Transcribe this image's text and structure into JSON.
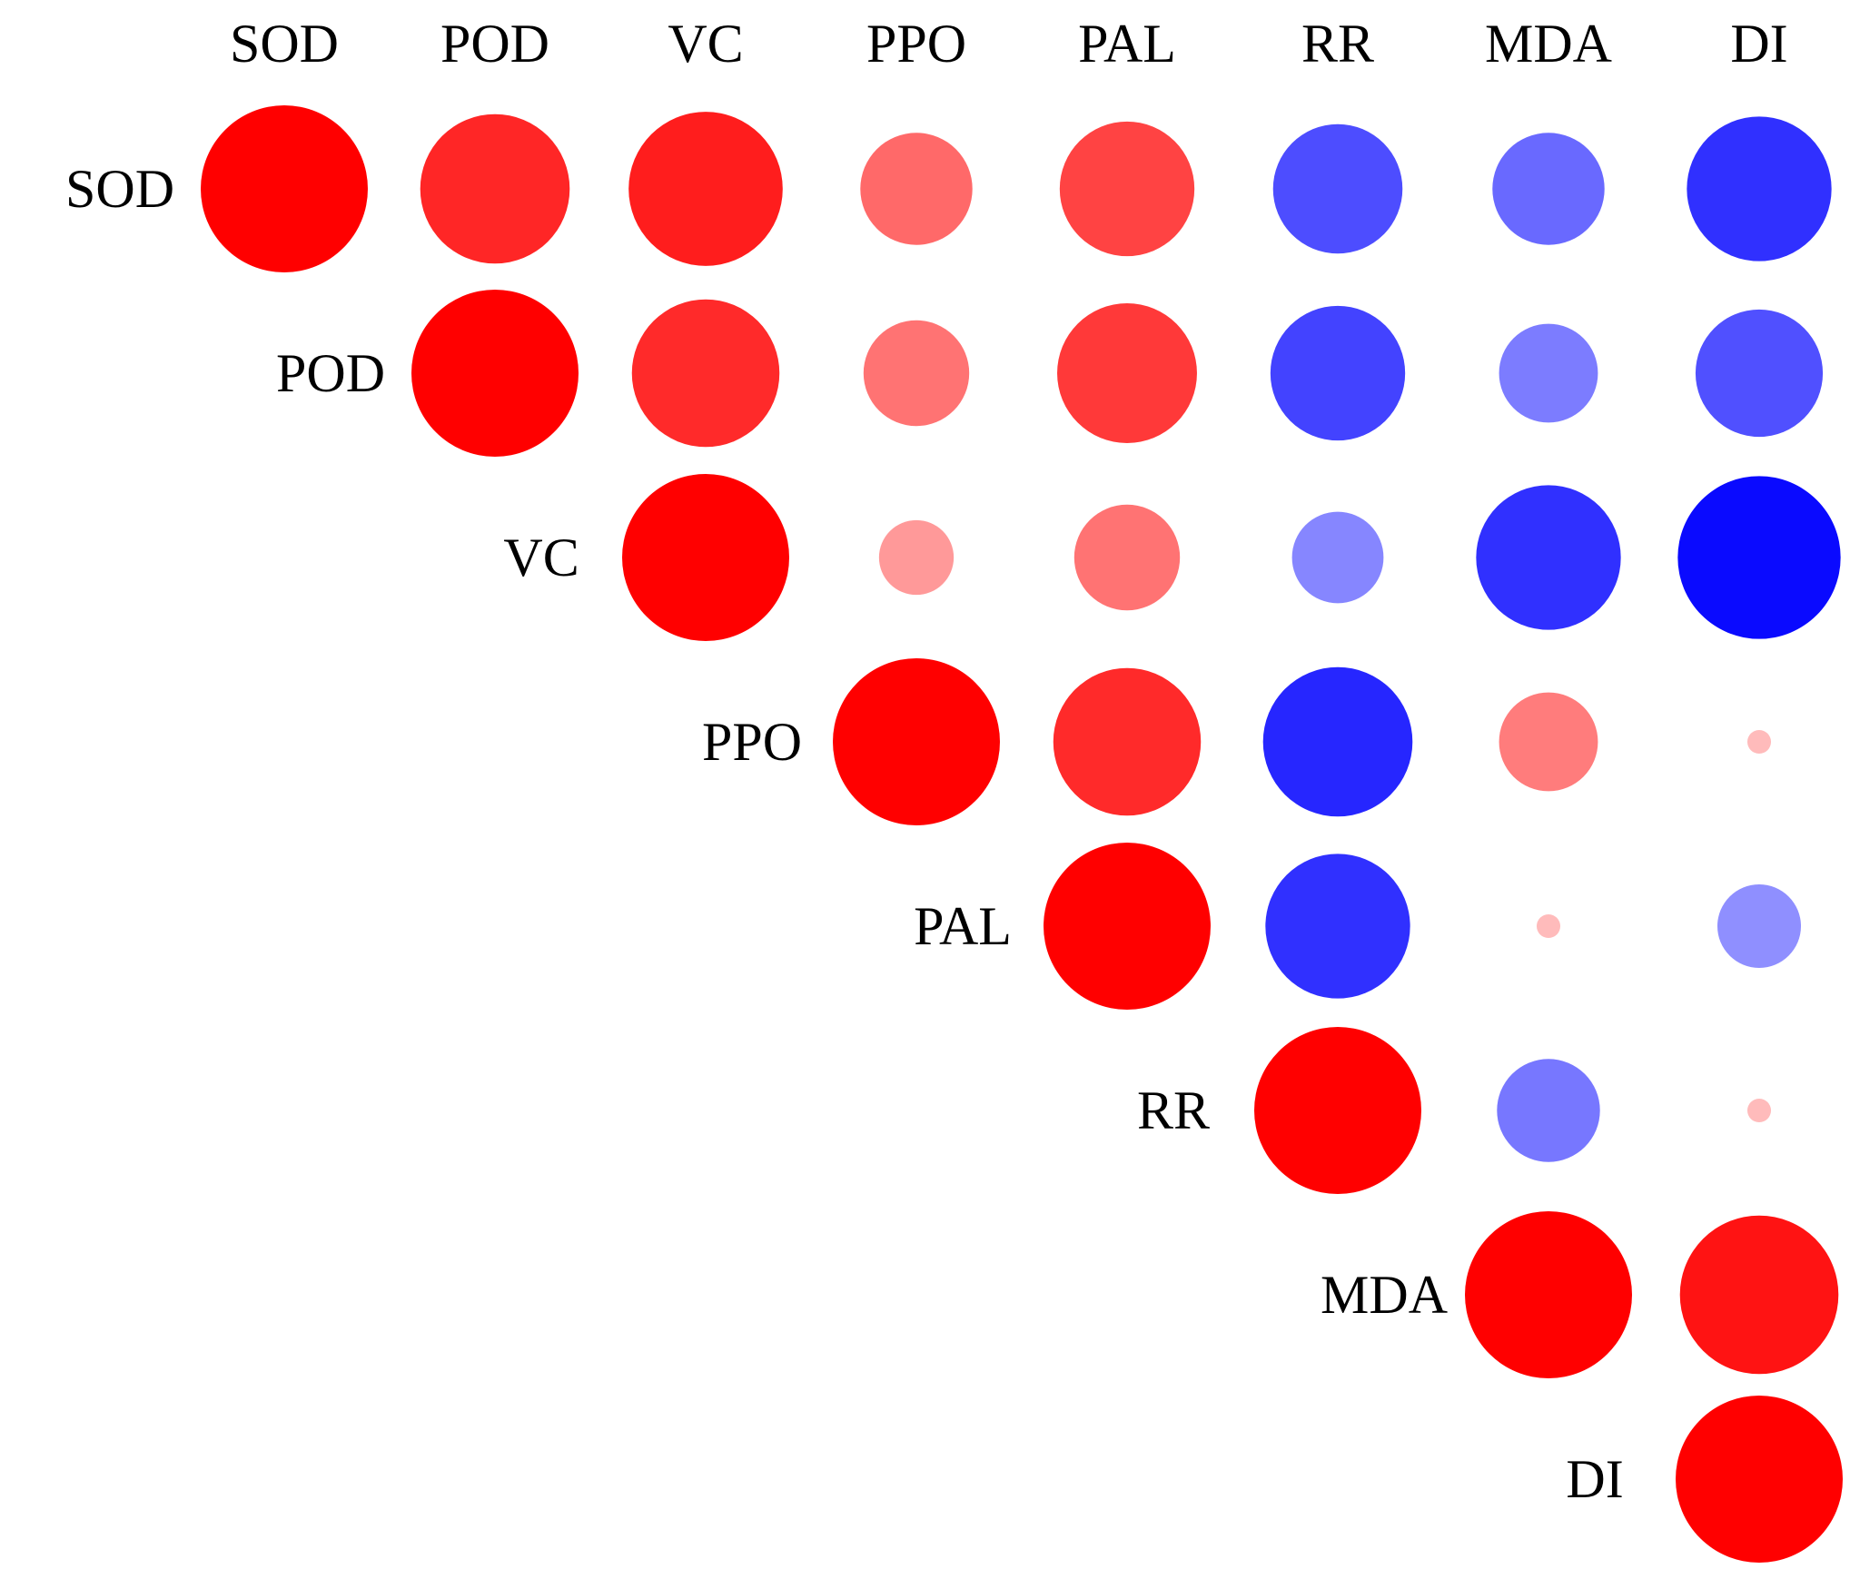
{
  "chart_data": {
    "type": "heatmap",
    "style": "correlation circle matrix, upper triangle",
    "title": "",
    "xlabel": "",
    "ylabel": "",
    "variables": [
      "SOD",
      "POD",
      "VC",
      "PPO",
      "PAL",
      "RR",
      "MDA",
      "DI"
    ],
    "value_range": [
      -1,
      1
    ],
    "encoding": "circle area and color intensity proportional to |r|; red = positive, blue = negative",
    "colors": {
      "positive": "#ff0000",
      "negative": "#0000ff",
      "background": "#ffffff",
      "label": "#000000"
    },
    "grid": false,
    "legend": "none",
    "matrix": [
      [
        1.0,
        0.8,
        0.85,
        0.45,
        0.65,
        -0.6,
        -0.45,
        -0.75
      ],
      [
        null,
        1.0,
        0.78,
        0.4,
        0.7,
        -0.65,
        -0.35,
        -0.58
      ],
      [
        null,
        null,
        1.0,
        0.2,
        0.4,
        -0.3,
        -0.75,
        -0.95
      ],
      [
        null,
        null,
        null,
        1.0,
        0.78,
        -0.8,
        0.35,
        0.02
      ],
      [
        null,
        null,
        null,
        null,
        1.0,
        -0.75,
        0.02,
        -0.25
      ],
      [
        null,
        null,
        null,
        null,
        null,
        1.0,
        -0.38,
        0.02
      ],
      [
        null,
        null,
        null,
        null,
        null,
        null,
        1.0,
        0.9
      ],
      [
        null,
        null,
        null,
        null,
        null,
        null,
        null,
        1.0
      ]
    ]
  }
}
